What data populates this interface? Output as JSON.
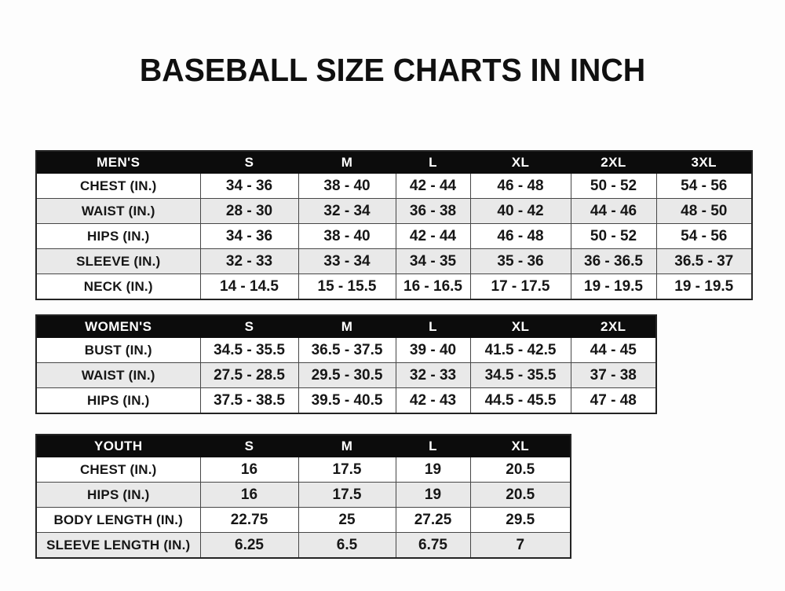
{
  "title": "BASEBALL SIZE CHARTS IN INCH",
  "colors": {
    "page_bg": "#fdfdfd",
    "header_bg": "#0c0c0c",
    "header_text": "#ffffff",
    "row_alt": "#e9e9e9",
    "border": "#474747",
    "text": "#161616"
  },
  "tables": [
    {
      "name": "MEN'S",
      "sizes": [
        "S",
        "M",
        "L",
        "XL",
        "2XL",
        "3XL"
      ],
      "rows": [
        {
          "label": "CHEST (IN.)",
          "values": [
            "34 - 36",
            "38 - 40",
            "42 - 44",
            "46 - 48",
            "50 - 52",
            "54 - 56"
          ]
        },
        {
          "label": "WAIST (IN.)",
          "values": [
            "28 - 30",
            "32 - 34",
            "36 - 38",
            "40 - 42",
            "44 - 46",
            "48 - 50"
          ]
        },
        {
          "label": "HIPS (IN.)",
          "values": [
            "34 - 36",
            "38 - 40",
            "42 - 44",
            "46 - 48",
            "50 - 52",
            "54 - 56"
          ]
        },
        {
          "label": "SLEEVE (IN.)",
          "values": [
            "32 - 33",
            "33 - 34",
            "34 - 35",
            "35 - 36",
            "36 - 36.5",
            "36.5 - 37"
          ]
        },
        {
          "label": "NECK (IN.)",
          "values": [
            "14 - 14.5",
            "15 - 15.5",
            "16 - 16.5",
            "17 - 17.5",
            "19 - 19.5",
            "19 - 19.5"
          ]
        }
      ]
    },
    {
      "name": "WOMEN'S",
      "sizes": [
        "S",
        "M",
        "L",
        "XL",
        "2XL"
      ],
      "rows": [
        {
          "label": "BUST (IN.)",
          "values": [
            "34.5 - 35.5",
            "36.5 - 37.5",
            "39 - 40",
            "41.5 - 42.5",
            "44 - 45"
          ]
        },
        {
          "label": "WAIST (IN.)",
          "values": [
            "27.5 - 28.5",
            "29.5 - 30.5",
            "32 - 33",
            "34.5 - 35.5",
            "37 - 38"
          ]
        },
        {
          "label": "HIPS (IN.)",
          "values": [
            "37.5 - 38.5",
            "39.5 - 40.5",
            "42 - 43",
            "44.5 - 45.5",
            "47 - 48"
          ]
        }
      ]
    },
    {
      "name": "YOUTH",
      "sizes": [
        "S",
        "M",
        "L",
        "XL"
      ],
      "rows": [
        {
          "label": "CHEST (IN.)",
          "values": [
            "16",
            "17.5",
            "19",
            "20.5"
          ]
        },
        {
          "label": "HIPS (IN.)",
          "values": [
            "16",
            "17.5",
            "19",
            "20.5"
          ]
        },
        {
          "label": "BODY LENGTH (IN.)",
          "values": [
            "22.75",
            "25",
            "27.25",
            "29.5"
          ]
        },
        {
          "label": "SLEEVE LENGTH (IN.)",
          "values": [
            "6.25",
            "6.5",
            "6.75",
            "7"
          ]
        }
      ]
    }
  ]
}
